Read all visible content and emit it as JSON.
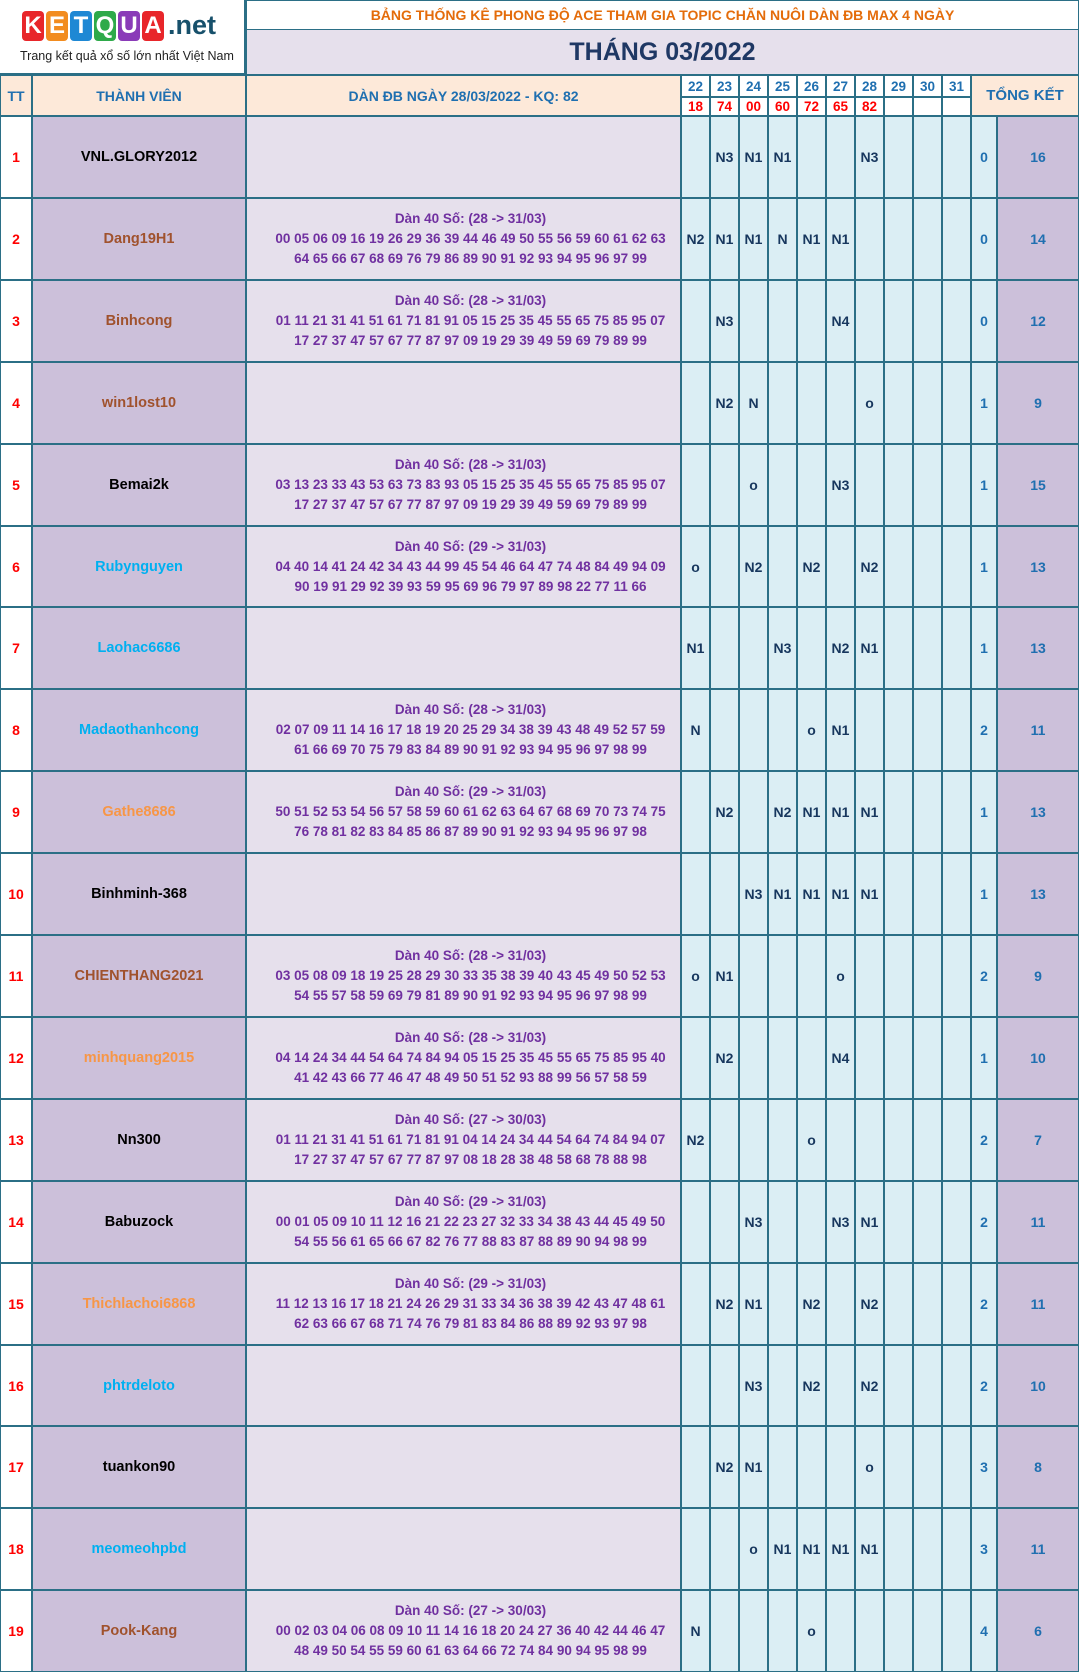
{
  "logo": {
    "letters": [
      "K",
      "E",
      "T",
      "Q",
      "U",
      "A"
    ],
    "letter_colors": [
      "#e8262a",
      "#f28c1f",
      "#1e88d4",
      "#2eaa4a",
      "#8a3bb8",
      "#e8262a"
    ],
    "suffix": ".net",
    "tagline": "Trang kết quả xổ số lớn nhất Việt Nam"
  },
  "header": {
    "banner": "BẢNG THỐNG KÊ PHONG ĐỘ ACE THAM GIA TOPIC CHĂN NUÔI DÀN ĐB MAX 4 NGÀY",
    "month_title": "THÁNG 03/2022",
    "col_tt": "TT",
    "col_member": "THÀNH VIÊN",
    "col_dan": "DÀN ĐB NGÀY 28/03/2022 - KQ: 82",
    "col_total": "TỔNG KẾT"
  },
  "days": [
    "22",
    "23",
    "24",
    "25",
    "26",
    "27",
    "28",
    "29",
    "30",
    "31"
  ],
  "results": [
    "18",
    "74",
    "00",
    "60",
    "72",
    "65",
    "82",
    "",
    "",
    ""
  ],
  "colors": {
    "border": "#2b6f86",
    "header_bg": "#fde9d9",
    "header_text": "#1f6fb0",
    "banner_text": "#e46c0a",
    "title_text": "#1f3864",
    "member_bg": "#ccc0da",
    "dan_bg": "#e6e0ec",
    "day_bg": "#dbeef4",
    "total_bg": "#ccc0da",
    "dan_text": "#7030a0",
    "mark_text": "#17375e",
    "num_text": "#ff0000",
    "stat_text": "#1f6fb0"
  },
  "rows": [
    {
      "tt": "1",
      "name": "VNL.GLORY2012",
      "name_color": "#000000",
      "dan_title": "",
      "dan_l1": "",
      "dan_l2": "",
      "marks": [
        "",
        "N3",
        "N1",
        "N1",
        "",
        "",
        "N3",
        "",
        "",
        ""
      ],
      "a": "0",
      "b": "16"
    },
    {
      "tt": "2",
      "name": "Dang19H1",
      "name_color": "#a0522d",
      "dan_title": "Dàn 40 Số: (28 -> 31/03)",
      "dan_l1": "00 05 06 09 16 19 26 29 36 39 44 46 49 50 55 56 59 60 61 62 63",
      "dan_l2": "64 65 66 67 68 69 76 79 86 89 90 91 92 93 94 95 96 97 99",
      "marks": [
        "N2",
        "N1",
        "N1",
        "N",
        "N1",
        "N1",
        "",
        "",
        "",
        ""
      ],
      "a": "0",
      "b": "14"
    },
    {
      "tt": "3",
      "name": "Binhcong",
      "name_color": "#a0522d",
      "dan_title": "Dàn 40 Số: (28 -> 31/03)",
      "dan_l1": "01 11 21 31 41 51 61 71 81 91 05 15 25 35 45 55 65 75 85 95 07",
      "dan_l2": "17 27 37 47 57 67 77 87 97 09 19 29 39 49 59 69 79 89 99",
      "marks": [
        "",
        "N3",
        "",
        "",
        "",
        "N4",
        "",
        "",
        "",
        ""
      ],
      "a": "0",
      "b": "12"
    },
    {
      "tt": "4",
      "name": "win1lost10",
      "name_color": "#a0522d",
      "dan_title": "",
      "dan_l1": "",
      "dan_l2": "",
      "marks": [
        "",
        "N2",
        "N",
        "",
        "",
        "",
        "o",
        "",
        "",
        ""
      ],
      "a": "1",
      "b": "9"
    },
    {
      "tt": "5",
      "name": "Bemai2k",
      "name_color": "#000000",
      "dan_title": "Dàn 40 Số: (28 -> 31/03)",
      "dan_l1": "03 13 23 33 43 53 63 73 83 93 05 15 25 35 45 55 65 75 85 95 07",
      "dan_l2": "17 27 37 47 57 67 77 87 97 09 19 29 39 49 59 69 79 89 99",
      "marks": [
        "",
        "",
        "o",
        "",
        "",
        "N3",
        "",
        "",
        "",
        ""
      ],
      "a": "1",
      "b": "15"
    },
    {
      "tt": "6",
      "name": "Rubynguyen",
      "name_color": "#00b0f0",
      "dan_title": "Dàn 40 Số: (29 -> 31/03)",
      "dan_l1": "04 40 14 41 24 42 34 43 44 99 45 54 46 64 47 74 48 84 49 94 09",
      "dan_l2": "90 19 91 29 92 39 93 59 95 69 96 79 97 89 98 22 77 11 66",
      "marks": [
        "o",
        "",
        "N2",
        "",
        "N2",
        "",
        "N2",
        "",
        "",
        ""
      ],
      "a": "1",
      "b": "13"
    },
    {
      "tt": "7",
      "name": "Laohac6686",
      "name_color": "#00b0f0",
      "dan_title": "",
      "dan_l1": "",
      "dan_l2": "",
      "marks": [
        "N1",
        "",
        "",
        "N3",
        "",
        "N2",
        "N1",
        "",
        "",
        ""
      ],
      "a": "1",
      "b": "13"
    },
    {
      "tt": "8",
      "name": "Madaothanhcong",
      "name_color": "#00b0f0",
      "dan_title": "Dàn 40 Số: (28 -> 31/03)",
      "dan_l1": "02 07 09 11 14 16 17 18 19 20 25 29 34 38 39 43 48 49 52 57 59",
      "dan_l2": "61 66 69 70 75 79 83 84 89 90 91 92 93 94 95 96 97 98 99",
      "marks": [
        "N",
        "",
        "",
        "",
        "o",
        "N1",
        "",
        "",
        "",
        ""
      ],
      "a": "2",
      "b": "11"
    },
    {
      "tt": "9",
      "name": "Gathe8686",
      "name_color": "#f79646",
      "dan_title": "Dàn 40 Số: (29 -> 31/03)",
      "dan_l1": "50 51 52 53 54 56 57 58 59 60 61 62 63 64 67 68 69 70 73 74 75",
      "dan_l2": "76 78 81 82 83 84 85 86 87 89 90 91 92 93 94 95 96 97 98",
      "marks": [
        "",
        "N2",
        "",
        "N2",
        "N1",
        "N1",
        "N1",
        "",
        "",
        ""
      ],
      "a": "1",
      "b": "13"
    },
    {
      "tt": "10",
      "name": "Binhminh-368",
      "name_color": "#000000",
      "dan_title": "",
      "dan_l1": "",
      "dan_l2": "",
      "marks": [
        "",
        "",
        "N3",
        "N1",
        "N1",
        "N1",
        "N1",
        "",
        "",
        ""
      ],
      "a": "1",
      "b": "13"
    },
    {
      "tt": "11",
      "name": "CHIENTHANG2021",
      "name_color": "#a0522d",
      "dan_title": "Dàn 40 Số: (28 -> 31/03)",
      "dan_l1": "03 05 08 09 18 19 25 28 29 30 33 35 38 39 40 43 45 49 50 52 53",
      "dan_l2": "54 55 57 58 59 69 79 81 89 90 91 92 93 94 95 96 97 98 99",
      "marks": [
        "o",
        "N1",
        "",
        "",
        "",
        "o",
        "",
        "",
        "",
        ""
      ],
      "a": "2",
      "b": "9"
    },
    {
      "tt": "12",
      "name": "minhquang2015",
      "name_color": "#f79646",
      "dan_title": "Dàn 40 Số: (28 -> 31/03)",
      "dan_l1": "04 14 24 34 44 54 64 74 84 94 05 15 25 35 45 55 65 75 85 95 40",
      "dan_l2": "41 42 43 66 77 46 47 48 49 50 51 52 93 88 99 56 57 58 59",
      "marks": [
        "",
        "N2",
        "",
        "",
        "",
        "N4",
        "",
        "",
        "",
        ""
      ],
      "a": "1",
      "b": "10"
    },
    {
      "tt": "13",
      "name": "Nn300",
      "name_color": "#000000",
      "dan_title": "Dàn 40 Số: (27 -> 30/03)",
      "dan_l1": "01 11 21 31 41 51 61 71 81 91 04 14 24 34 44 54 64 74 84 94 07",
      "dan_l2": "17 27 37 47 57 67 77 87 97 08 18 28 38 48 58 68 78 88 98",
      "marks": [
        "N2",
        "",
        "",
        "",
        "o",
        "",
        "",
        "",
        "",
        ""
      ],
      "a": "2",
      "b": "7"
    },
    {
      "tt": "14",
      "name": "Babuzock",
      "name_color": "#000000",
      "dan_title": "Dàn 40 Số: (29 -> 31/03)",
      "dan_l1": "00 01 05 09 10 11 12 16 21 22 23 27 32 33 34 38 43 44 45 49 50",
      "dan_l2": "54 55 56 61 65 66 67 82 76 77 88 83 87 88 89 90 94 98 99",
      "marks": [
        "",
        "",
        "N3",
        "",
        "",
        "N3",
        "N1",
        "",
        "",
        ""
      ],
      "a": "2",
      "b": "11"
    },
    {
      "tt": "15",
      "name": "Thichlachoi6868",
      "name_color": "#f79646",
      "dan_title": "Dàn 40 Số: (29 -> 31/03)",
      "dan_l1": "11 12 13 16 17 18 21 24 26 29 31 33 34 36 38 39 42 43 47 48 61",
      "dan_l2": "62 63 66 67 68 71 74 76 79 81 83 84 86 88 89 92 93 97 98",
      "marks": [
        "",
        "N2",
        "N1",
        "",
        "N2",
        "",
        "N2",
        "",
        "",
        ""
      ],
      "a": "2",
      "b": "11"
    },
    {
      "tt": "16",
      "name": "phtrdeloto",
      "name_color": "#00b0f0",
      "dan_title": "",
      "dan_l1": "",
      "dan_l2": "",
      "marks": [
        "",
        "",
        "N3",
        "",
        "N2",
        "",
        "N2",
        "",
        "",
        ""
      ],
      "a": "2",
      "b": "10"
    },
    {
      "tt": "17",
      "name": "tuankon90",
      "name_color": "#000000",
      "dan_title": "",
      "dan_l1": "",
      "dan_l2": "",
      "marks": [
        "",
        "N2",
        "N1",
        "",
        "",
        "",
        "o",
        "",
        "",
        ""
      ],
      "a": "3",
      "b": "8"
    },
    {
      "tt": "18",
      "name": "meomeohpbd",
      "name_color": "#00b0f0",
      "dan_title": "",
      "dan_l1": "",
      "dan_l2": "",
      "marks": [
        "",
        "",
        "o",
        "N1",
        "N1",
        "N1",
        "N1",
        "",
        "",
        ""
      ],
      "a": "3",
      "b": "11"
    },
    {
      "tt": "19",
      "name": "Pook-Kang",
      "name_color": "#a0522d",
      "dan_title": "Dàn 40 Số: (27 -> 30/03)",
      "dan_l1": "00 02 03 04 06 08 09 10 11 14 16 18 20 24 27 36 40 42 44 46 47",
      "dan_l2": "48 49 50 54 55 59 60 61 63 64 66 72 74 84 90 94 95 98 99",
      "marks": [
        "N",
        "",
        "",
        "",
        "o",
        "",
        "",
        "",
        "",
        ""
      ],
      "a": "4",
      "b": "6"
    }
  ]
}
